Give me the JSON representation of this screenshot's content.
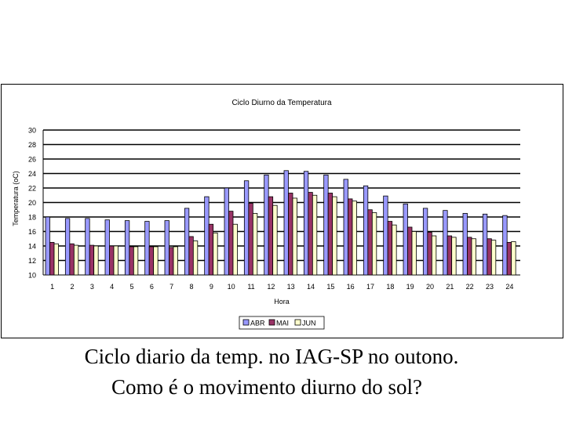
{
  "chart_data": {
    "type": "bar",
    "title": "Ciclo Diurno da Temperatura",
    "xlabel": "Hora",
    "ylabel": "Temperatura (oC)",
    "ylim": [
      10,
      30
    ],
    "yticks": [
      "10",
      "12",
      "14",
      "16",
      "18",
      "20",
      "22",
      "24",
      "26",
      "28",
      "30"
    ],
    "categories": [
      "1",
      "2",
      "3",
      "4",
      "5",
      "6",
      "7",
      "8",
      "9",
      "10",
      "11",
      "12",
      "13",
      "14",
      "15",
      "16",
      "17",
      "18",
      "19",
      "20",
      "21",
      "22",
      "23",
      "24"
    ],
    "grid": true,
    "legend_position": "bottom",
    "series": [
      {
        "name": "ABR",
        "color": "#9999ff",
        "values": [
          18.0,
          17.8,
          17.8,
          17.6,
          17.5,
          17.4,
          17.5,
          19.2,
          20.8,
          22.0,
          23.0,
          23.8,
          24.4,
          24.3,
          23.8,
          23.2,
          22.3,
          20.9,
          19.8,
          19.2,
          18.9,
          18.5,
          18.4,
          18.2
        ]
      },
      {
        "name": "MAI",
        "color": "#993366",
        "values": [
          14.5,
          14.3,
          14.1,
          14.0,
          13.9,
          13.9,
          13.8,
          15.3,
          17.0,
          18.8,
          19.9,
          20.8,
          21.3,
          21.4,
          21.3,
          20.5,
          19.0,
          17.4,
          16.6,
          15.9,
          15.4,
          15.2,
          15.0,
          14.5
        ]
      },
      {
        "name": "JUN",
        "color": "#ffffcc",
        "values": [
          14.3,
          14.1,
          14.0,
          14.0,
          13.9,
          13.9,
          13.9,
          14.7,
          15.8,
          17.0,
          18.5,
          19.6,
          20.6,
          21.0,
          20.8,
          20.2,
          18.6,
          16.9,
          16.0,
          15.4,
          15.2,
          15.0,
          14.8,
          14.6
        ]
      }
    ]
  },
  "caption": {
    "line1": "Ciclo diario da temp. no IAG-SP no outono.",
    "line2": "Como é o movimento diurno do sol?"
  }
}
